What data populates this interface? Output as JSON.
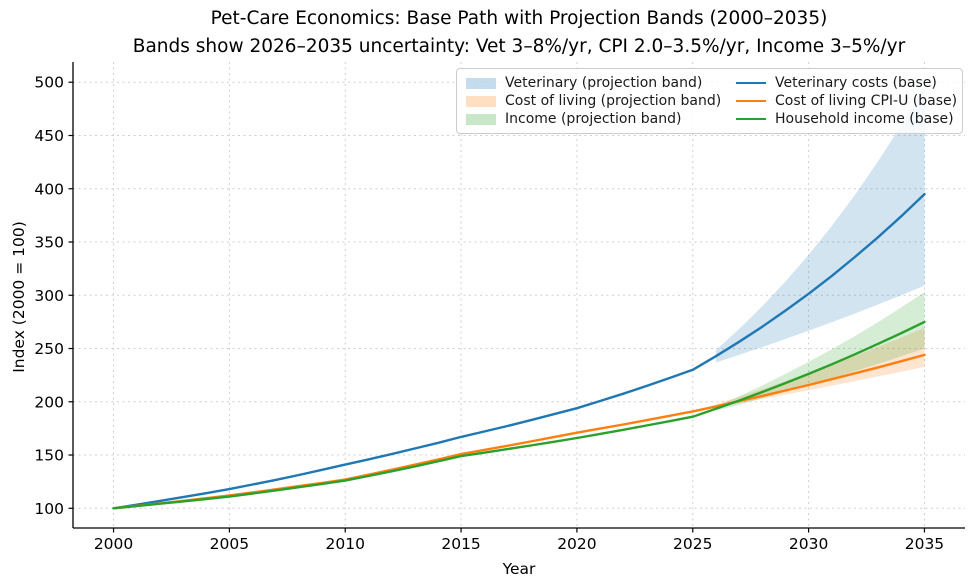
{
  "chart_data": {
    "type": "line",
    "title": "Pet-Care Economics: Base Path with Projection Bands (2000–2035)",
    "subtitle": "Bands show 2026–2035 uncertainty: Vet 3–8%/yr, CPI 2.0–3.5%/yr, Income 3–5%/yr",
    "xlabel": "Year",
    "ylabel": "Index (2000 = 100)",
    "xticks": [
      2000,
      2005,
      2010,
      2015,
      2020,
      2025,
      2030,
      2035
    ],
    "yticks": [
      100,
      150,
      200,
      250,
      300,
      350,
      400,
      450,
      500
    ],
    "xlim": [
      1998.25,
      2036.75
    ],
    "ylim": [
      81.5,
      519
    ],
    "grid": true,
    "legend_position": "upper right",
    "grid_color": "#cfcfcf",
    "x": [
      2000,
      2001,
      2002,
      2003,
      2004,
      2005,
      2006,
      2007,
      2008,
      2009,
      2010,
      2011,
      2012,
      2013,
      2014,
      2015,
      2016,
      2017,
      2018,
      2019,
      2020,
      2021,
      2022,
      2023,
      2024,
      2025,
      2026,
      2027,
      2028,
      2029,
      2030,
      2031,
      2032,
      2033,
      2034,
      2035
    ],
    "series": [
      {
        "key": "vet",
        "name": "Veterinary costs (base)",
        "color": "#1f77b4",
        "values": [
          100,
          103.4,
          106.9,
          110.5,
          114.2,
          118,
          122.3,
          126.7,
          131.3,
          136.1,
          141,
          145.9,
          150.9,
          156.1,
          161.4,
          167,
          172.1,
          177.3,
          182.7,
          188.3,
          194,
          200.7,
          207.6,
          214.8,
          222.3,
          230,
          242.8,
          256.3,
          270.5,
          285.6,
          301.4,
          318.2,
          335.9,
          354.5,
          374.2,
          395
        ]
      },
      {
        "key": "cpi",
        "name": "Cost of living CPI-U (base)",
        "color": "#ff7f0e",
        "values": [
          100,
          102.3,
          104.6,
          107,
          109.5,
          112,
          114.8,
          117.8,
          120.8,
          123.8,
          127,
          131.5,
          136.1,
          140.9,
          145.8,
          151,
          154.8,
          158.7,
          162.7,
          166.8,
          171,
          174.8,
          178.7,
          182.7,
          186.8,
          191,
          195.7,
          200.6,
          205.5,
          210.6,
          215.8,
          221.2,
          226.7,
          232.3,
          238.1,
          244
        ]
      },
      {
        "key": "income",
        "name": "Household income (base)",
        "color": "#2ca02c",
        "values": [
          100,
          102.1,
          104.3,
          106.5,
          108.7,
          111,
          113.9,
          116.8,
          119.8,
          122.9,
          126,
          130.3,
          134.7,
          139.3,
          144.1,
          149,
          152.2,
          155.6,
          159,
          162.4,
          166,
          169.8,
          173.7,
          177.7,
          181.8,
          186,
          193.4,
          201.1,
          209.2,
          217.5,
          226.2,
          235.2,
          244.6,
          254.4,
          264.5,
          275
        ]
      }
    ],
    "bands": [
      {
        "key": "vet",
        "name": "Veterinary (projection band)",
        "color": "#1f77b4",
        "opacity": 0.2,
        "x": [
          2026,
          2027,
          2028,
          2029,
          2030,
          2031,
          2032,
          2033,
          2034,
          2035
        ],
        "low": [
          236.9,
          244,
          251.3,
          258.9,
          266.6,
          274.6,
          282.9,
          291.3,
          300.1,
          309.1
        ],
        "high": [
          248.4,
          268.3,
          289.7,
          312.9,
          337.9,
          365,
          394.2,
          425.7,
          459.8,
          496.6
        ]
      },
      {
        "key": "cpi",
        "name": "Cost of living (projection band)",
        "color": "#ff7f0e",
        "opacity": 0.2,
        "x": [
          2026,
          2027,
          2028,
          2029,
          2030,
          2031,
          2032,
          2033,
          2034,
          2035
        ],
        "low": [
          194.8,
          198.7,
          202.7,
          206.7,
          210.9,
          215.1,
          219.4,
          223.8,
          228.2,
          232.8
        ],
        "high": [
          197.7,
          204.6,
          211.8,
          219.2,
          226.9,
          234.8,
          243,
          251.5,
          260.3,
          269.4
        ]
      },
      {
        "key": "income",
        "name": "Income (projection band)",
        "color": "#2ca02c",
        "opacity": 0.2,
        "x": [
          2026,
          2027,
          2028,
          2029,
          2030,
          2031,
          2032,
          2033,
          2034,
          2035
        ],
        "low": [
          191.6,
          197.3,
          203.3,
          209.4,
          215.6,
          222.1,
          228.8,
          235.6,
          242.7,
          250
        ],
        "high": [
          195.3,
          205.1,
          215.3,
          226.1,
          237.4,
          249.3,
          261.7,
          274.8,
          288.6,
          303
        ]
      }
    ]
  }
}
